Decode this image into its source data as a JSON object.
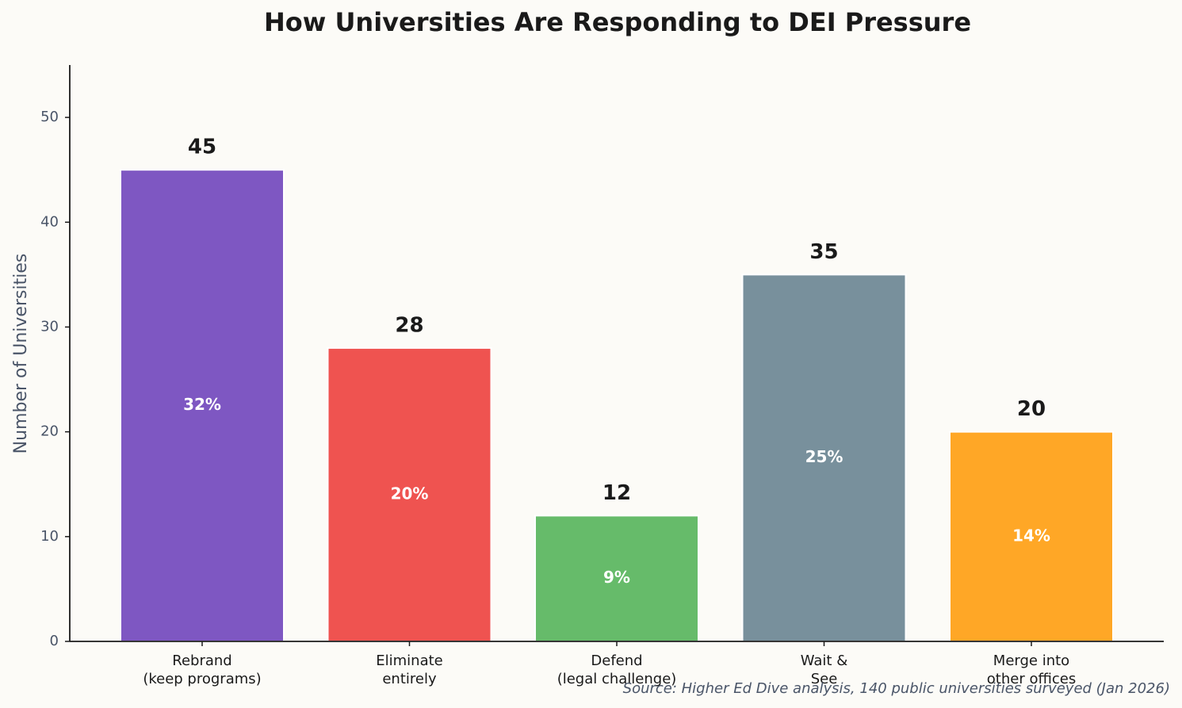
{
  "chart_data": {
    "type": "bar",
    "title": "How Universities Are Responding to DEI Pressure",
    "y_label": "Number of Universities",
    "categories": [
      "Rebrand\n(keep programs)",
      "Eliminate\nentirely",
      "Defend\n(legal challenge)",
      "Wait &\nSee",
      "Merge into\nother offices"
    ],
    "values": [
      45,
      28,
      12,
      35,
      20
    ],
    "colors": [
      "#7e57c2",
      "#ef5350",
      "#66bb6a",
      "#78909c",
      "#ffa726"
    ],
    "percent_labels": [
      "32%",
      "20%",
      "9%",
      "25%",
      "14%"
    ],
    "ylim": [
      0,
      55
    ],
    "yticks": [
      0,
      10,
      20,
      30,
      40,
      50
    ],
    "grid": false,
    "source": "Source: Higher Ed Dive analysis, 140 public universities surveyed (Jan 2026)"
  }
}
